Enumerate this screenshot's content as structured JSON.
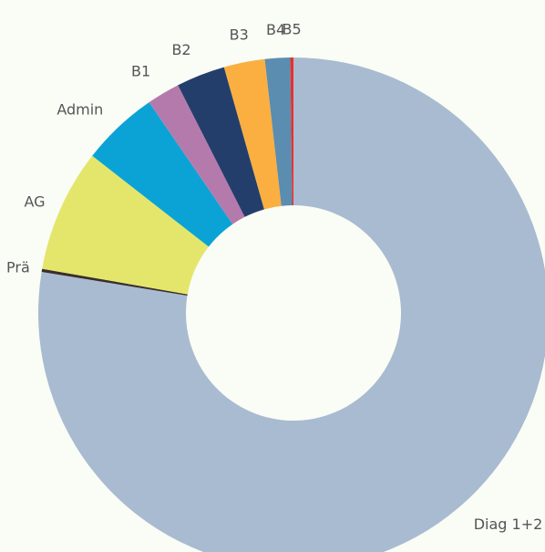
{
  "chart_data": {
    "type": "donut",
    "categories": [
      "Diag 1+2",
      "Prä",
      "AG",
      "Admin",
      "B1",
      "B2",
      "B3",
      "B4",
      "B5"
    ],
    "values": [
      77.8,
      0.2,
      7.8,
      4.9,
      2.1,
      3.1,
      2.6,
      1.6,
      0.2
    ],
    "colors": [
      "#a9bbd0",
      "#3a2e2a",
      "#e3e66a",
      "#0ba3d6",
      "#b57aac",
      "#243e6c",
      "#fbaf40",
      "#5b8db0",
      "#e8302e"
    ]
  }
}
